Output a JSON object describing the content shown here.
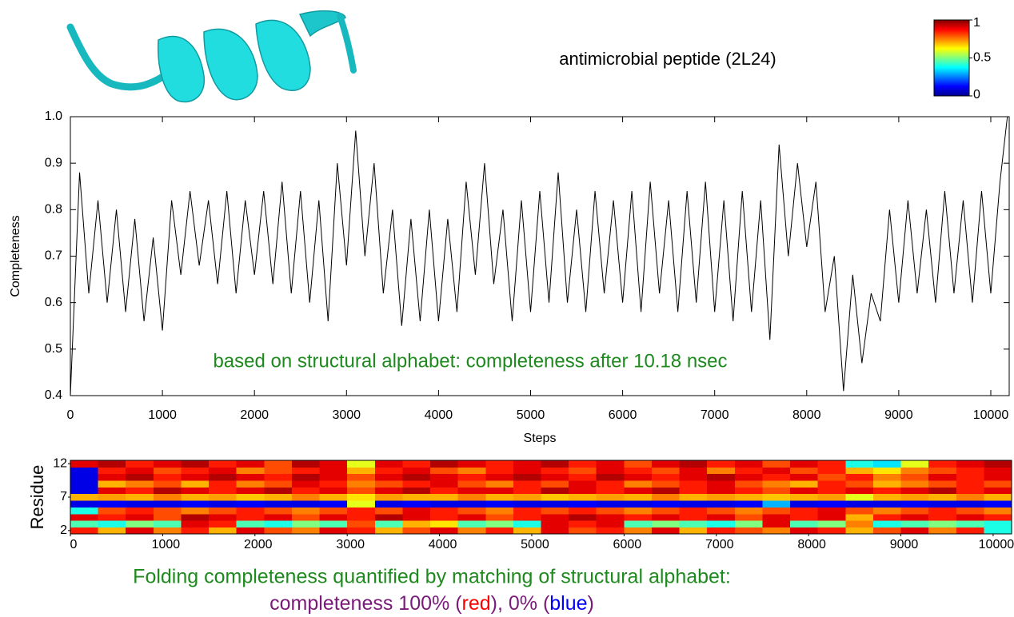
{
  "title": "antimicrobial peptide (2L24)",
  "caption": {
    "line1": {
      "text": "Folding completeness quantified by matching of structural alphabet:",
      "color": "#1e8a1e"
    },
    "line2": [
      {
        "text": "completeness 100% (",
        "color": "#7a1a7a"
      },
      {
        "text": "red",
        "color": "#ff0000"
      },
      {
        "text": "), 0% (",
        "color": "#7a1a7a"
      },
      {
        "text": "blue",
        "color": "#0000ff"
      },
      {
        "text": ")",
        "color": "#7a1a7a"
      }
    ]
  },
  "chart_data": [
    {
      "type": "line",
      "xlabel": "Steps",
      "ylabel": "Completeness",
      "color": "#000000",
      "annotation": {
        "text": "based on structural alphabet: completeness after 10.18 nsec",
        "color": "#1e8a1e"
      },
      "x": [
        0,
        100,
        200,
        300,
        400,
        500,
        600,
        700,
        800,
        900,
        1000,
        1100,
        1200,
        1300,
        1400,
        1500,
        1600,
        1700,
        1800,
        1900,
        2000,
        2100,
        2200,
        2300,
        2400,
        2500,
        2600,
        2700,
        2800,
        2900,
        3000,
        3100,
        3200,
        3300,
        3400,
        3500,
        3600,
        3700,
        3800,
        3900,
        4000,
        4100,
        4200,
        4300,
        4400,
        4500,
        4600,
        4700,
        4800,
        4900,
        5000,
        5100,
        5200,
        5300,
        5400,
        5500,
        5600,
        5700,
        5800,
        5900,
        6000,
        6100,
        6200,
        6300,
        6400,
        6500,
        6600,
        6700,
        6800,
        6900,
        7000,
        7100,
        7200,
        7300,
        7400,
        7500,
        7600,
        7700,
        7800,
        7900,
        8000,
        8100,
        8200,
        8300,
        8400,
        8500,
        8600,
        8700,
        8800,
        8900,
        9000,
        9100,
        9200,
        9300,
        9400,
        9500,
        9600,
        9700,
        9800,
        9900,
        10000,
        10100,
        10180
      ],
      "values": [
        0.4,
        0.88,
        0.62,
        0.82,
        0.6,
        0.8,
        0.58,
        0.78,
        0.56,
        0.74,
        0.54,
        0.82,
        0.66,
        0.84,
        0.68,
        0.82,
        0.64,
        0.84,
        0.62,
        0.82,
        0.66,
        0.84,
        0.64,
        0.86,
        0.62,
        0.84,
        0.6,
        0.82,
        0.56,
        0.9,
        0.68,
        0.97,
        0.7,
        0.9,
        0.62,
        0.8,
        0.55,
        0.78,
        0.56,
        0.8,
        0.56,
        0.78,
        0.58,
        0.86,
        0.66,
        0.9,
        0.64,
        0.8,
        0.56,
        0.82,
        0.58,
        0.84,
        0.6,
        0.88,
        0.6,
        0.8,
        0.58,
        0.84,
        0.62,
        0.82,
        0.6,
        0.84,
        0.58,
        0.86,
        0.62,
        0.82,
        0.58,
        0.84,
        0.6,
        0.86,
        0.58,
        0.82,
        0.56,
        0.84,
        0.58,
        0.82,
        0.52,
        0.94,
        0.7,
        0.9,
        0.72,
        0.86,
        0.58,
        0.7,
        0.41,
        0.66,
        0.47,
        0.62,
        0.56,
        0.8,
        0.6,
        0.82,
        0.62,
        0.8,
        0.6,
        0.84,
        0.62,
        0.82,
        0.6,
        0.84,
        0.62,
        0.86,
        1.0
      ],
      "xlim": [
        0,
        10200
      ],
      "xticks": [
        0,
        1000,
        2000,
        3000,
        4000,
        5000,
        6000,
        7000,
        8000,
        9000,
        10000
      ],
      "ylim": [
        0.4,
        1.0
      ],
      "yticks": [
        0.4,
        0.5,
        0.6,
        0.7,
        0.8,
        0.9,
        {
          "value": 1,
          "label": "1.0"
        }
      ]
    },
    {
      "type": "heatmap",
      "ylabel": "Residue",
      "x": [
        0,
        300,
        600,
        900,
        1200,
        1500,
        1800,
        2100,
        2400,
        2700,
        3000,
        3300,
        3600,
        3900,
        4200,
        4500,
        4800,
        5100,
        5400,
        5700,
        6000,
        6300,
        6600,
        6900,
        7200,
        7500,
        7800,
        8100,
        8400,
        8700,
        9000,
        9300,
        9600,
        9900
      ],
      "y": [
        2,
        3,
        4,
        5,
        6,
        7,
        8,
        9,
        10,
        11,
        12
      ],
      "values": [
        [
          0.85,
          0.7,
          0.9,
          0.75,
          0.85,
          0.7,
          0.9,
          0.8,
          0.75,
          0.9,
          0.85,
          0.7,
          0.8,
          0.9,
          0.75,
          0.85,
          0.7,
          0.9,
          0.8,
          0.85,
          0.75,
          0.9,
          0.7,
          0.85,
          0.8,
          0.75,
          0.9,
          0.85,
          0.7,
          0.8,
          0.9,
          0.75,
          0.85,
          0.4
        ],
        [
          0.45,
          0.4,
          0.5,
          0.45,
          0.9,
          0.85,
          0.45,
          0.4,
          0.5,
          0.45,
          0.8,
          0.45,
          0.7,
          0.65,
          0.45,
          0.5,
          0.4,
          0.9,
          0.85,
          0.9,
          0.45,
          0.5,
          0.45,
          0.4,
          0.5,
          0.9,
          0.45,
          0.5,
          0.75,
          0.4,
          0.45,
          0.5,
          0.45,
          0.4
        ],
        [
          0.9,
          0.85,
          0.9,
          0.8,
          0.95,
          0.9,
          0.85,
          0.9,
          0.8,
          0.9,
          0.85,
          0.95,
          0.9,
          0.85,
          0.9,
          0.8,
          0.85,
          0.9,
          0.95,
          0.9,
          0.85,
          0.9,
          0.85,
          0.9,
          0.8,
          0.9,
          0.85,
          0.9,
          0.7,
          0.85,
          0.9,
          0.85,
          0.9,
          0.85
        ],
        [
          0.4,
          0.8,
          0.85,
          0.8,
          0.75,
          0.8,
          0.85,
          0.8,
          0.75,
          0.8,
          0.85,
          0.8,
          0.9,
          0.85,
          0.8,
          0.75,
          0.85,
          0.8,
          0.85,
          0.8,
          0.75,
          0.8,
          0.85,
          0.8,
          0.75,
          0.8,
          0.85,
          0.9,
          0.8,
          0.75,
          0.8,
          0.85,
          0.8,
          0.75
        ],
        [
          0.1,
          0.12,
          0.1,
          0.1,
          0.12,
          0.1,
          0.12,
          0.1,
          0.1,
          0.12,
          0.6,
          0.1,
          0.12,
          0.1,
          0.1,
          0.12,
          0.1,
          0.1,
          0.12,
          0.1,
          0.1,
          0.12,
          0.1,
          0.1,
          0.12,
          0.3,
          0.1,
          0.12,
          0.1,
          0.1,
          0.12,
          0.1,
          0.1,
          0.12
        ],
        [
          0.7,
          0.72,
          0.7,
          0.75,
          0.7,
          0.72,
          0.68,
          0.7,
          0.75,
          0.7,
          0.65,
          0.72,
          0.7,
          0.7,
          0.75,
          0.7,
          0.72,
          0.68,
          0.7,
          0.72,
          0.7,
          0.75,
          0.7,
          0.72,
          0.7,
          0.68,
          0.7,
          0.72,
          0.6,
          0.7,
          0.72,
          0.7,
          0.75,
          0.7
        ],
        [
          0.1,
          0.9,
          0.85,
          0.95,
          0.9,
          0.85,
          0.9,
          0.95,
          0.85,
          0.9,
          0.8,
          0.9,
          0.95,
          0.85,
          0.9,
          0.9,
          0.85,
          0.95,
          0.9,
          0.85,
          0.9,
          0.95,
          0.85,
          0.9,
          0.85,
          0.8,
          0.9,
          0.85,
          0.9,
          0.85,
          0.9,
          0.95,
          0.85,
          0.9
        ],
        [
          0.1,
          0.7,
          0.75,
          0.8,
          0.7,
          0.85,
          0.75,
          0.8,
          0.9,
          0.85,
          0.75,
          0.8,
          0.85,
          0.9,
          0.8,
          0.75,
          0.85,
          0.8,
          0.9,
          0.85,
          0.75,
          0.8,
          0.85,
          0.9,
          0.8,
          0.75,
          0.7,
          0.85,
          0.8,
          0.7,
          0.75,
          0.8,
          0.85,
          0.8
        ],
        [
          0.1,
          0.9,
          0.95,
          0.85,
          0.9,
          0.95,
          0.9,
          0.85,
          0.95,
          0.9,
          0.8,
          0.9,
          0.95,
          0.9,
          0.85,
          0.9,
          0.95,
          0.9,
          0.85,
          0.95,
          0.9,
          0.85,
          0.9,
          0.95,
          0.9,
          0.85,
          0.9,
          0.8,
          0.85,
          0.75,
          0.8,
          0.9,
          0.85,
          0.9
        ],
        [
          0.1,
          0.85,
          0.9,
          0.8,
          0.85,
          0.9,
          0.75,
          0.8,
          0.85,
          0.9,
          0.7,
          0.85,
          0.9,
          0.8,
          0.75,
          0.85,
          0.9,
          0.85,
          0.8,
          0.9,
          0.85,
          0.8,
          0.9,
          0.75,
          0.85,
          0.9,
          0.8,
          0.85,
          0.7,
          0.65,
          0.75,
          0.8,
          0.85,
          0.9
        ],
        [
          0.9,
          0.95,
          0.85,
          0.9,
          0.95,
          0.85,
          0.9,
          0.8,
          0.95,
          0.9,
          0.6,
          0.9,
          0.85,
          0.95,
          0.9,
          0.85,
          0.9,
          0.95,
          0.85,
          0.9,
          0.8,
          0.9,
          0.95,
          0.85,
          0.9,
          0.8,
          0.9,
          0.85,
          0.4,
          0.35,
          0.6,
          0.85,
          0.9,
          0.95
        ]
      ],
      "xlim": [
        0,
        10200
      ],
      "xticks": [
        0,
        1000,
        2000,
        3000,
        4000,
        5000,
        6000,
        7000,
        8000,
        9000,
        10000
      ],
      "ylim": [
        1.5,
        12.5
      ],
      "yticks": [
        2,
        7,
        12
      ],
      "colorbar": {
        "lim": [
          0,
          1
        ],
        "ticks": [
          0,
          0.5,
          1
        ]
      }
    }
  ]
}
